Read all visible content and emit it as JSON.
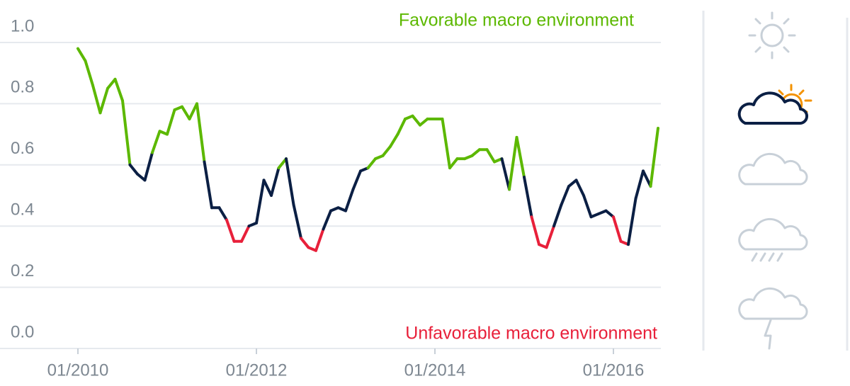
{
  "chart_data": {
    "type": "line",
    "annotations": {
      "top": "Favorable macro environment",
      "bottom": "Unfavorable macro environment"
    },
    "annotation_colors": {
      "top": "#5cb800",
      "bottom": "#e8203a"
    },
    "x": [
      "01/2010",
      "02/2010",
      "03/2010",
      "04/2010",
      "05/2010",
      "06/2010",
      "07/2010",
      "08/2010",
      "09/2010",
      "10/2010",
      "11/2010",
      "12/2010",
      "01/2011",
      "02/2011",
      "03/2011",
      "04/2011",
      "05/2011",
      "06/2011",
      "07/2011",
      "08/2011",
      "09/2011",
      "10/2011",
      "11/2011",
      "12/2011",
      "01/2012",
      "02/2012",
      "03/2012",
      "04/2012",
      "05/2012",
      "06/2012",
      "07/2012",
      "08/2012",
      "09/2012",
      "10/2012",
      "11/2012",
      "12/2012",
      "01/2013",
      "02/2013",
      "03/2013",
      "04/2013",
      "05/2013",
      "06/2013",
      "07/2013",
      "08/2013",
      "09/2013",
      "10/2013",
      "11/2013",
      "12/2013",
      "01/2014",
      "02/2014",
      "03/2014",
      "04/2014",
      "05/2014",
      "06/2014",
      "07/2014",
      "08/2014",
      "09/2014",
      "10/2014",
      "11/2014",
      "12/2014",
      "01/2015",
      "02/2015",
      "03/2015",
      "04/2015",
      "05/2015",
      "06/2015",
      "07/2015",
      "08/2015",
      "09/2015",
      "10/2015",
      "11/2015",
      "12/2015",
      "01/2016",
      "02/2016",
      "03/2016",
      "04/2016",
      "05/2016",
      "06/2016",
      "07/2016"
    ],
    "values": [
      0.98,
      0.94,
      0.86,
      0.77,
      0.85,
      0.88,
      0.81,
      0.6,
      0.57,
      0.55,
      0.64,
      0.71,
      0.7,
      0.78,
      0.79,
      0.75,
      0.8,
      0.61,
      0.46,
      0.46,
      0.42,
      0.35,
      0.35,
      0.4,
      0.41,
      0.55,
      0.5,
      0.59,
      0.62,
      0.47,
      0.36,
      0.33,
      0.32,
      0.39,
      0.45,
      0.46,
      0.45,
      0.52,
      0.58,
      0.59,
      0.62,
      0.63,
      0.66,
      0.7,
      0.75,
      0.76,
      0.73,
      0.75,
      0.75,
      0.75,
      0.59,
      0.62,
      0.62,
      0.63,
      0.65,
      0.65,
      0.61,
      0.62,
      0.52,
      0.69,
      0.56,
      0.43,
      0.34,
      0.33,
      0.4,
      0.47,
      0.53,
      0.55,
      0.5,
      0.43,
      0.44,
      0.45,
      0.43,
      0.35,
      0.34,
      0.49,
      0.58,
      0.53,
      0.72
    ],
    "color_bands": [
      {
        "above": 0.6,
        "color": "#5cb800"
      },
      {
        "above": 0.4,
        "color": "#0b1f44"
      },
      {
        "above": 0,
        "color": "#e8203a"
      }
    ],
    "ylim": [
      0,
      1
    ],
    "yticks": [
      {
        "value": 0,
        "label": "0.0"
      },
      0.2,
      0.4,
      0.6,
      0.8,
      {
        "value": 1,
        "label": "1.0"
      }
    ],
    "xticks": [
      "01/2010",
      "01/2012",
      "01/2014",
      "01/2016"
    ],
    "grid": true
  }
}
